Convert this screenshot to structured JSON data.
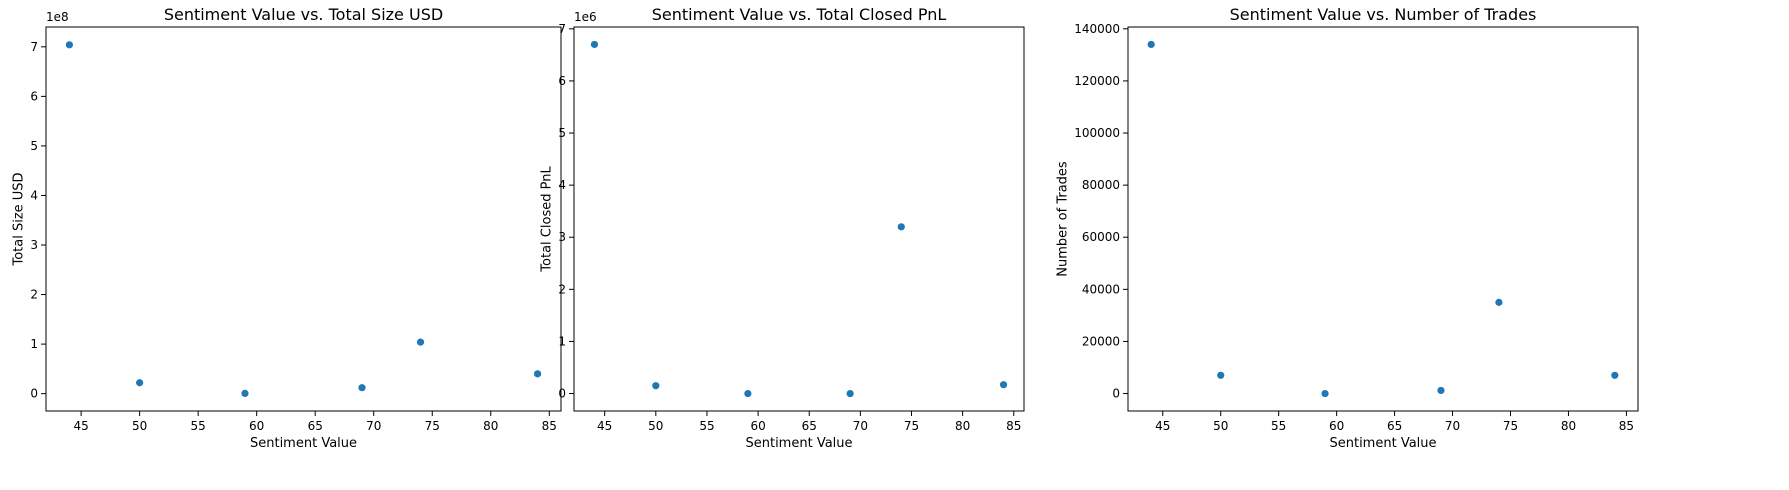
{
  "chart_data": [
    {
      "type": "scatter",
      "title": "Sentiment Value vs. Total Size USD",
      "xlabel": "Sentiment Value",
      "ylabel": "Total Size USD",
      "y_offset_label": "1e8",
      "y_scale": 100000000,
      "xlim": [
        42,
        86
      ],
      "ylim": [
        -35000000,
        740000000
      ],
      "x_ticks": [
        45,
        50,
        55,
        60,
        65,
        70,
        75,
        80,
        85
      ],
      "x_tick_labels": [
        "45",
        "50",
        "55",
        "60",
        "65",
        "70",
        "75",
        "80",
        "85"
      ],
      "y_ticks": [
        0,
        100000000,
        200000000,
        300000000,
        400000000,
        500000000,
        600000000,
        700000000
      ],
      "y_tick_labels": [
        "0",
        "1",
        "2",
        "3",
        "4",
        "5",
        "6",
        "7"
      ],
      "grid": false,
      "color": "#1f77b4",
      "points": [
        {
          "x": 44,
          "y": 704000000
        },
        {
          "x": 50,
          "y": 22000000
        },
        {
          "x": 59,
          "y": 500000
        },
        {
          "x": 69,
          "y": 12000000
        },
        {
          "x": 74,
          "y": 104000000
        },
        {
          "x": 84,
          "y": 40000000
        }
      ]
    },
    {
      "type": "scatter",
      "title": "Sentiment Value vs. Total Closed PnL",
      "xlabel": "Sentiment Value",
      "ylabel": "Total Closed PnL",
      "y_offset_label": "1e6",
      "y_scale": 1000000,
      "xlim": [
        42,
        86
      ],
      "ylim": [
        -335000,
        7035000
      ],
      "x_ticks": [
        45,
        50,
        55,
        60,
        65,
        70,
        75,
        80,
        85
      ],
      "x_tick_labels": [
        "45",
        "50",
        "55",
        "60",
        "65",
        "70",
        "75",
        "80",
        "85"
      ],
      "y_ticks": [
        0,
        1000000,
        2000000,
        3000000,
        4000000,
        5000000,
        6000000,
        7000000
      ],
      "y_tick_labels": [
        "0",
        "1",
        "2",
        "3",
        "4",
        "5",
        "6",
        "7"
      ],
      "grid": false,
      "color": "#1f77b4",
      "points": [
        {
          "x": 44,
          "y": 6700000
        },
        {
          "x": 50,
          "y": 150000
        },
        {
          "x": 59,
          "y": 0
        },
        {
          "x": 69,
          "y": 0
        },
        {
          "x": 74,
          "y": 3200000
        },
        {
          "x": 84,
          "y": 170000
        }
      ]
    },
    {
      "type": "scatter",
      "title": "Sentiment Value vs. Number of Trades",
      "xlabel": "Sentiment Value",
      "ylabel": "Number of Trades",
      "y_offset_label": "",
      "y_scale": 1,
      "xlim": [
        42,
        86
      ],
      "ylim": [
        -6700,
        140700
      ],
      "x_ticks": [
        45,
        50,
        55,
        60,
        65,
        70,
        75,
        80,
        85
      ],
      "x_tick_labels": [
        "45",
        "50",
        "55",
        "60",
        "65",
        "70",
        "75",
        "80",
        "85"
      ],
      "y_ticks": [
        0,
        20000,
        40000,
        60000,
        80000,
        100000,
        120000,
        140000
      ],
      "y_tick_labels": [
        "0",
        "20000",
        "40000",
        "60000",
        "80000",
        "100000",
        "120000",
        "140000"
      ],
      "grid": false,
      "color": "#1f77b4",
      "points": [
        {
          "x": 44,
          "y": 134000
        },
        {
          "x": 50,
          "y": 7000
        },
        {
          "x": 59,
          "y": 0
        },
        {
          "x": 69,
          "y": 1200
        },
        {
          "x": 74,
          "y": 35000
        },
        {
          "x": 84,
          "y": 7000
        }
      ]
    }
  ]
}
